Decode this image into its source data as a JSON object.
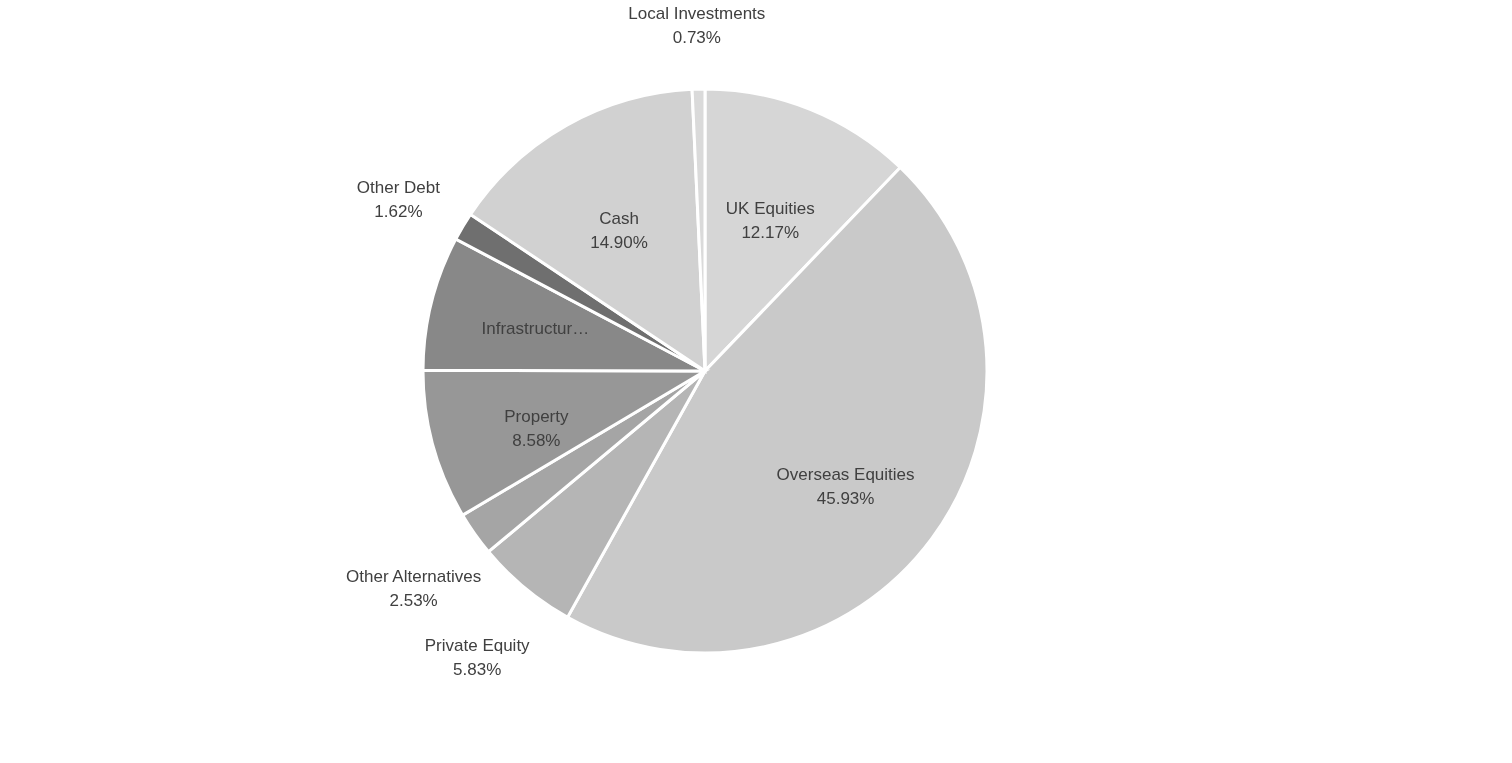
{
  "chart_data": {
    "type": "pie",
    "categories": [
      "UK Equities",
      "Overseas Equities",
      "Private Equity",
      "Other Alternatives",
      "Property",
      "Infrastructur…",
      "Other Debt",
      "Cash",
      "Local Investments"
    ],
    "values": [
      12.17,
      45.93,
      5.83,
      2.53,
      8.58,
      7.71,
      1.62,
      14.9,
      0.73
    ],
    "value_labels": [
      "12.17%",
      "45.93%",
      "5.83%",
      "2.53%",
      "8.58%",
      null,
      "1.62%",
      "14.90%",
      "0.73%"
    ],
    "colors": [
      "#d6d6d6",
      "#c9c9c9",
      "#b5b5b5",
      "#a5a5a5",
      "#979797",
      "#888888",
      "#6f6f6f",
      "#d1d1d1",
      "#dadada"
    ],
    "legend": false
  }
}
